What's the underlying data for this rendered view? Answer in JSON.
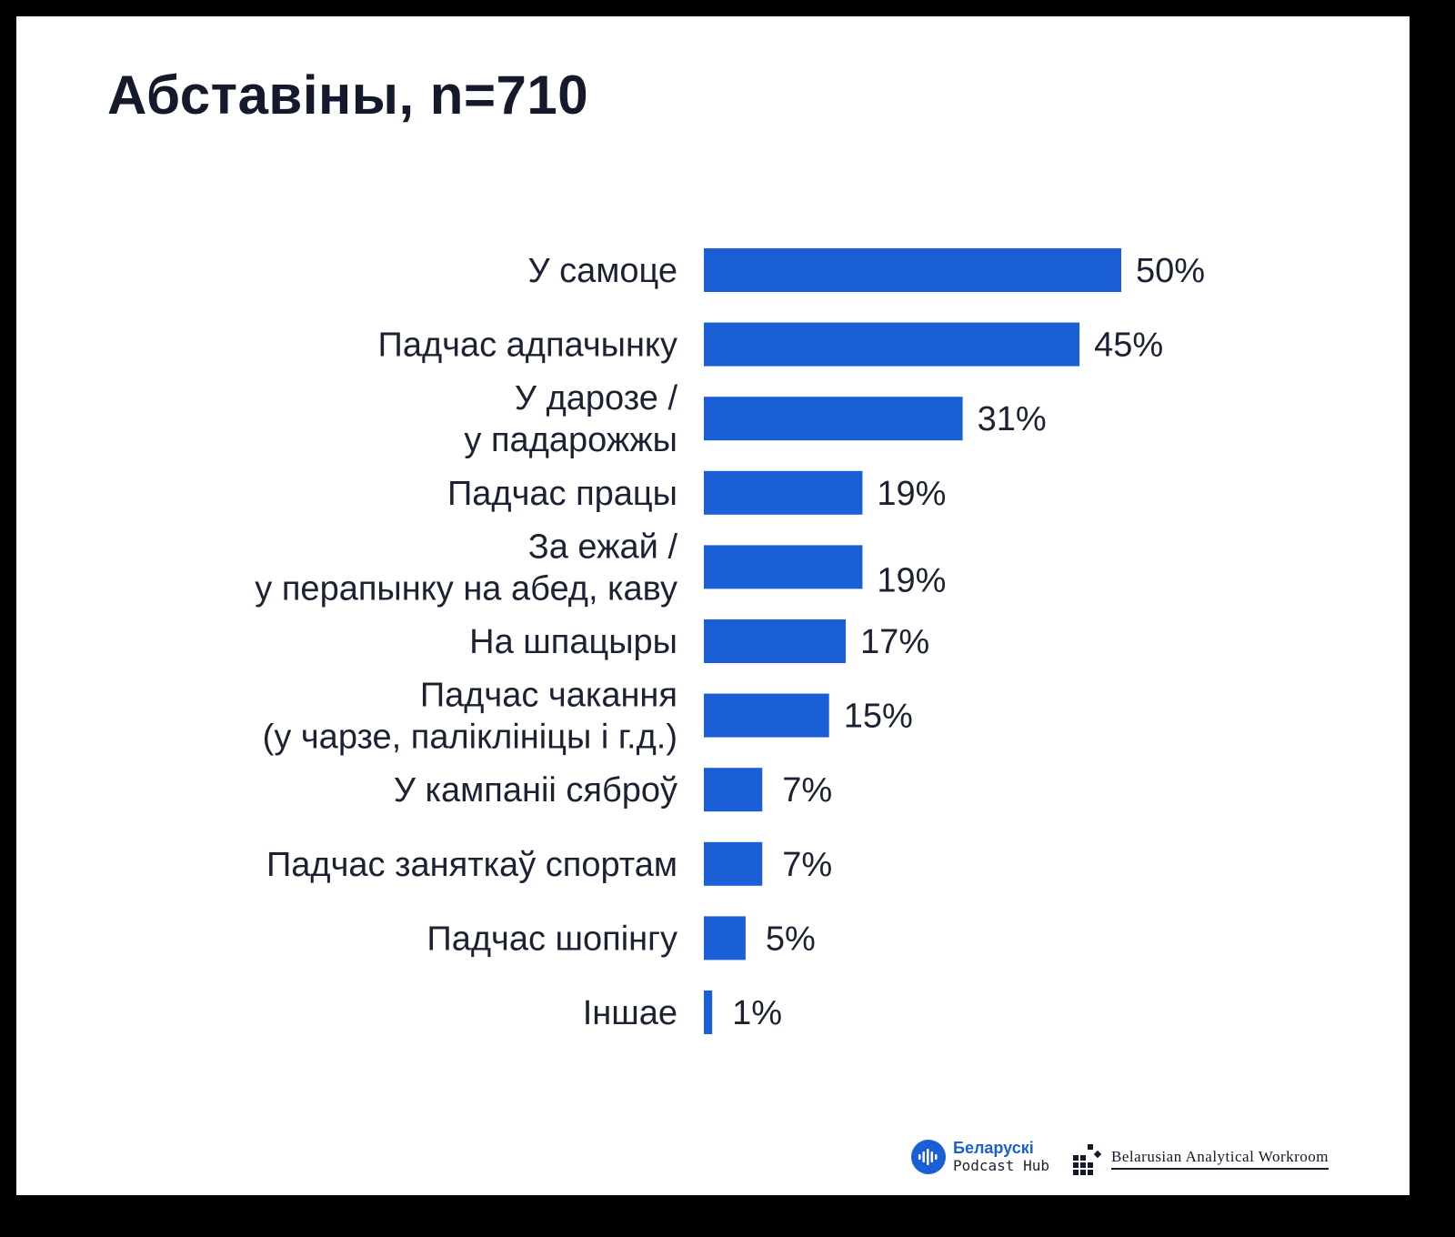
{
  "title": "Абставіны, n=710",
  "accent_color": "#1b5fd6",
  "chart_data": {
    "type": "bar",
    "orientation": "horizontal",
    "title": "Абставіны, n=710",
    "xlabel": "",
    "ylabel": "",
    "xlim": [
      0,
      50
    ],
    "grid": false,
    "categories": [
      [
        "У самоце"
      ],
      [
        "Падчас адпачынку"
      ],
      [
        "У дарозе /",
        "у падарожжы"
      ],
      [
        "Падчас працы"
      ],
      [
        "За ежай /",
        "у перапынку на абед, каву"
      ],
      [
        "На шпацыры"
      ],
      [
        "Падчас чакання",
        "(у чарзе, паліклініцы і г.д.)"
      ],
      [
        "У кампаніі сяброў"
      ],
      [
        "Падчас заняткаў спортам"
      ],
      [
        "Падчас шопінгу"
      ],
      [
        "Іншае"
      ]
    ],
    "values": [
      50,
      45,
      31,
      19,
      19,
      17,
      15,
      7,
      7,
      5,
      1
    ],
    "value_labels": [
      "50%",
      "45%",
      "31%",
      "19%",
      "19%",
      "17%",
      "15%",
      "7%",
      "7%",
      "5%",
      "1%"
    ]
  },
  "logos": {
    "podcast_hub": {
      "line1": "Беларускі",
      "line2": "Podcast Hub",
      "icon": "podcast-wave-icon"
    },
    "workroom": {
      "text": "Belarusian Analytical Workroom",
      "icon": "pixel-blocks-icon"
    }
  }
}
